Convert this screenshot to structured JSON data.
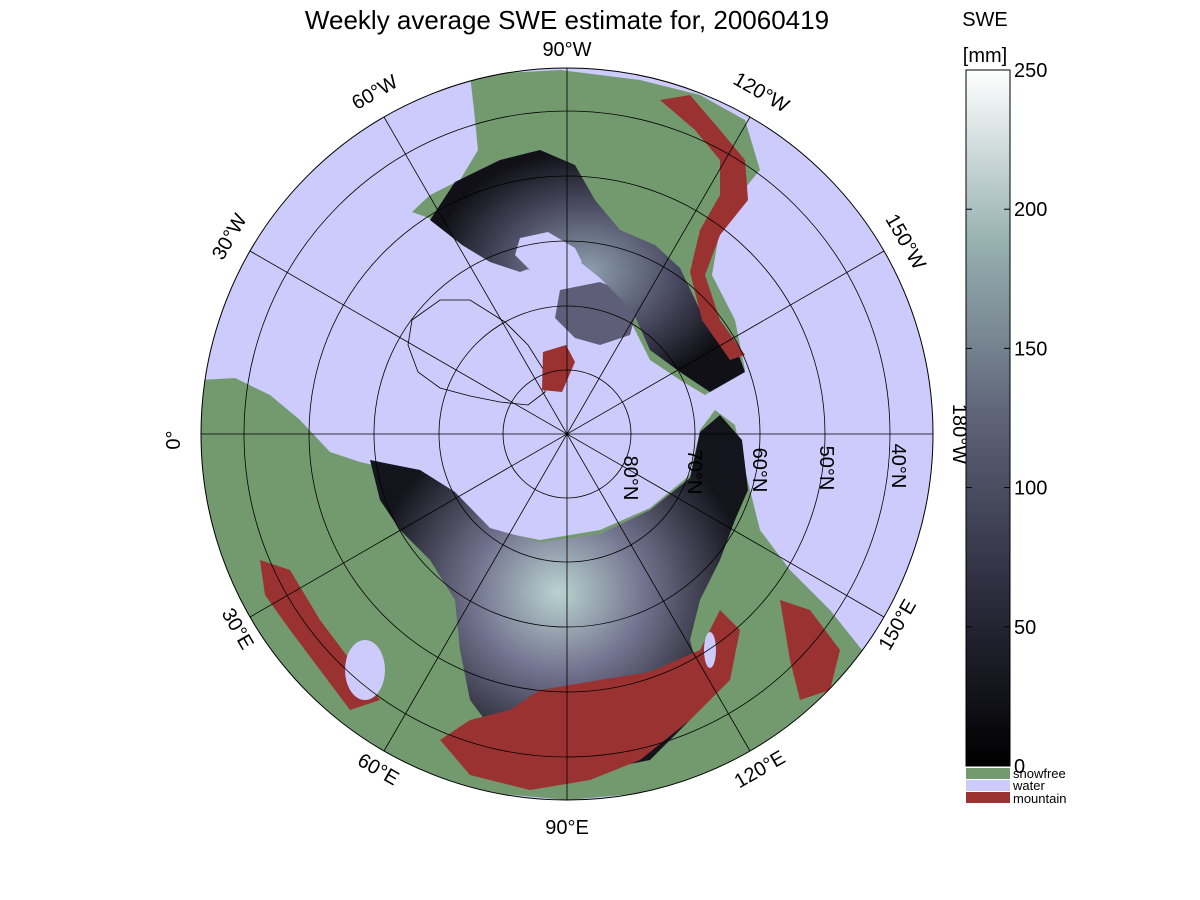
{
  "title": "Weekly average SWE estimate for, 20060419",
  "colorbar": {
    "label_line1": "SWE",
    "label_line2": "[mm]",
    "ticks": [
      "0",
      "50",
      "100",
      "150",
      "200",
      "250"
    ],
    "tick_values": [
      0,
      50,
      100,
      150,
      200,
      250
    ],
    "range": [
      0,
      250
    ],
    "colors": {
      "low": "#0a0a10",
      "mid": "#5a5a78",
      "high": "#ffffff"
    }
  },
  "legend": [
    {
      "label": "snowfree",
      "color": "#739a6f"
    },
    {
      "label": "water",
      "color": "#cccbfb"
    },
    {
      "label": "mountain",
      "color": "#9b3232"
    }
  ],
  "map": {
    "projection": "north polar stereographic",
    "ocean_color": "#cccbfb",
    "land_color": "#739a6f",
    "mountain_color": "#9b3232",
    "longitude_labels": [
      "90°W",
      "120°W",
      "150°W",
      "180°W",
      "150°E",
      "120°E",
      "90°E",
      "60°E",
      "30°E",
      "0°",
      "30°W",
      "60°W"
    ],
    "latitude_labels": [
      "80°N",
      "70°N",
      "60°N",
      "50°N",
      "40°N"
    ]
  }
}
